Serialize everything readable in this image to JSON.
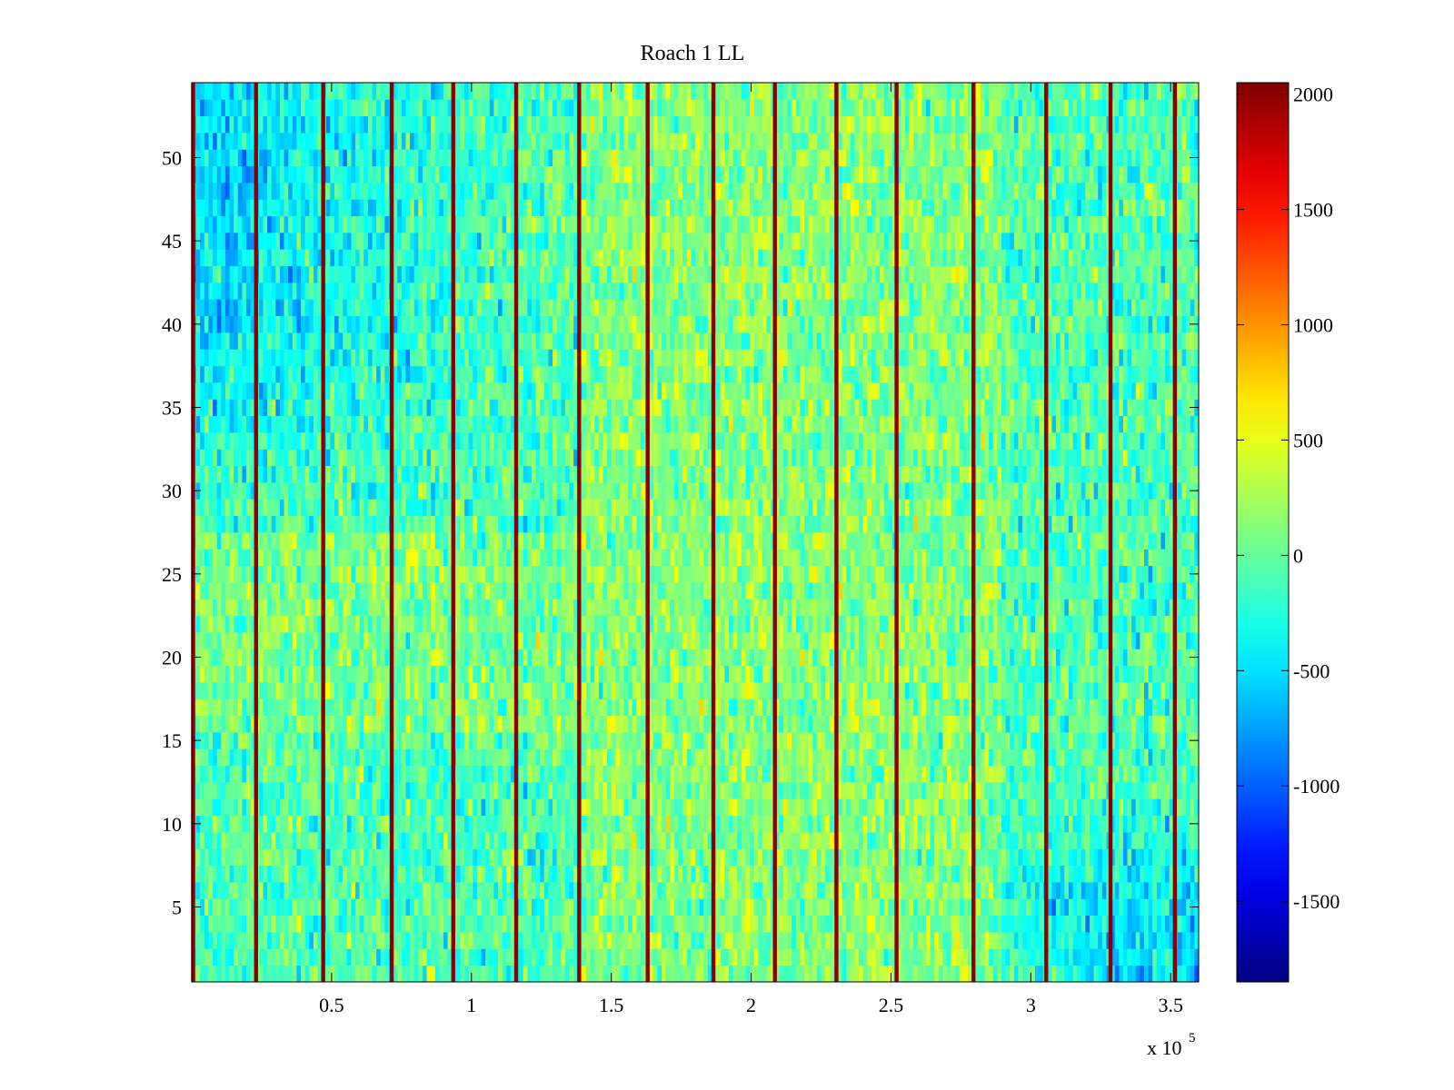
{
  "chart_data": {
    "type": "heatmap",
    "title": "Roach 1 LL",
    "xlabel": "",
    "ylabel": "",
    "x_exponent_base": "x 10",
    "x_exponent_power": "5",
    "xlim": [
      0,
      3.6
    ],
    "ylim": [
      0.5,
      54.5
    ],
    "x_ticks": [
      0.5,
      1,
      1.5,
      2,
      2.5,
      3,
      3.5
    ],
    "x_tick_labels": [
      "0.5",
      "1",
      "1.5",
      "2",
      "2.5",
      "3",
      "3.5"
    ],
    "y_ticks": [
      5,
      10,
      15,
      20,
      25,
      30,
      35,
      40,
      45,
      50
    ],
    "y_tick_labels": [
      "5",
      "10",
      "15",
      "20",
      "25",
      "30",
      "35",
      "40",
      "45",
      "50"
    ],
    "rows": 54,
    "colormap": "jet",
    "clim": [
      -1850,
      2050
    ],
    "colorbar_ticks": [
      2000,
      1500,
      1000,
      500,
      0,
      -500,
      -1000,
      -1500
    ],
    "colorbar_tick_labels": [
      "2000",
      "1500",
      "1000",
      "500",
      "0",
      "-500",
      "-1000",
      "-1500"
    ],
    "baseline_value": -100,
    "high_value_stripes_x": [
      0.005,
      0.23,
      0.47,
      0.715,
      0.935,
      1.16,
      1.385,
      1.63,
      1.865,
      2.085,
      2.305,
      2.52,
      2.795,
      3.055,
      3.285,
      3.515
    ],
    "stripe_value": 2000,
    "regional_trend": "bluer (approx. -600 to -900) in upper-left region x<1.2e5, y>28; warmer (approx. +300) in middle-right; bluer in lower-right region x>2.8e5, y<12"
  }
}
